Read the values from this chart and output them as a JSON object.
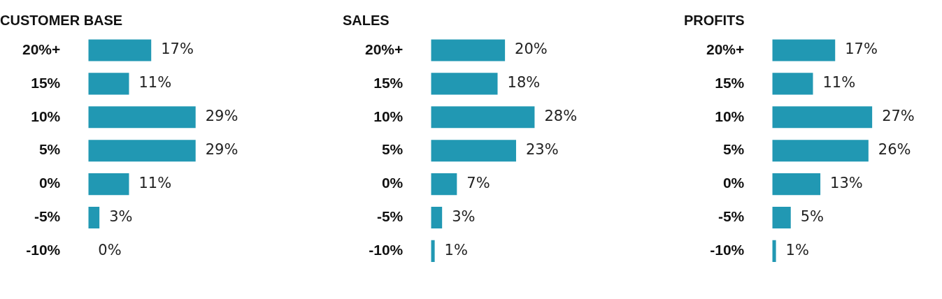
{
  "chart_data": [
    {
      "type": "bar",
      "orientation": "horizontal",
      "title": "CUSTOMER BASE",
      "categories": [
        "20%+",
        "15%",
        "10%",
        "5%",
        "0%",
        "-5%",
        "-10%"
      ],
      "series": [
        {
          "color": "#2198b3",
          "values": [
            17,
            11,
            29,
            29,
            11,
            3,
            0
          ],
          "value_labels": [
            "17%",
            "11%",
            "29%",
            "29%",
            "11%",
            "3%",
            "0%"
          ]
        }
      ]
    },
    {
      "type": "bar",
      "orientation": "horizontal",
      "title": "SALES",
      "categories": [
        "20%+",
        "15%",
        "10%",
        "5%",
        "0%",
        "-5%",
        "-10%"
      ],
      "series": [
        {
          "color": "#2198b3",
          "values": [
            20,
            18,
            28,
            23,
            7,
            3,
            1
          ],
          "value_labels": [
            "20%",
            "18%",
            "28%",
            "23%",
            "7%",
            "3%",
            "1%"
          ]
        }
      ]
    },
    {
      "type": "bar",
      "orientation": "horizontal",
      "title": "PROFITS",
      "categories": [
        "20%+",
        "15%",
        "10%",
        "5%",
        "0%",
        "-5%",
        "-10%"
      ],
      "series": [
        {
          "color": "#2198b3",
          "values": [
            17,
            11,
            27,
            26,
            13,
            5,
            1
          ],
          "value_labels": [
            "17%",
            "11%",
            "27%",
            "26%",
            "13%",
            "5%",
            "1%"
          ]
        }
      ]
    }
  ]
}
